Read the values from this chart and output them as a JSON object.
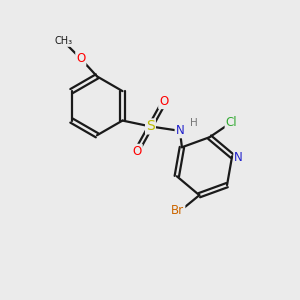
{
  "background_color": "#ebebeb",
  "bond_color": "#1a1a1a",
  "atom_colors": {
    "O": "#ff0000",
    "S": "#bbbb00",
    "N": "#2222cc",
    "Cl": "#33aa33",
    "Br": "#cc6600",
    "C": "#1a1a1a",
    "H": "#777777"
  },
  "figsize": [
    3.0,
    3.0
  ],
  "dpi": 100,
  "lw": 1.6,
  "fs": 8.5
}
